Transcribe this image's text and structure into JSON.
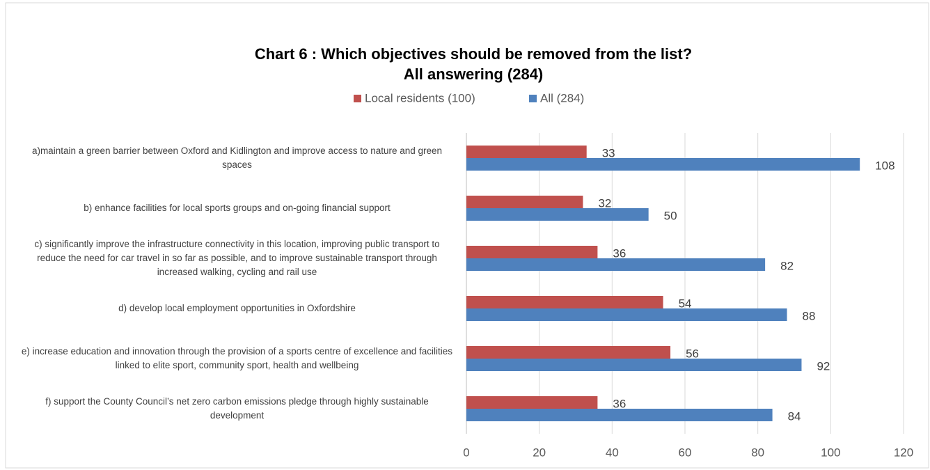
{
  "chart_data": {
    "type": "hbar",
    "title": "Chart 6 : Which objectives should be removed from the list?",
    "subtitle": "All answering (284)",
    "categories": [
      "a)maintain a green barrier between Oxford and Kidlington and improve access to nature and green spaces",
      "b)   enhance facilities for local sports groups and on-going financial support",
      "c)   significantly improve the infrastructure connectivity in this location, improving public transport to reduce the need for car travel in so far as possible, and to improve sustainable transport through increased walking, cycling and rail use",
      "d)   develop local employment opportunities in Oxfordshire",
      "e)   increase education and innovation through the provision of a sports centre of excellence and facilities linked to elite sport, community sport, health and wellbeing",
      "f)   support the County Council’s net zero carbon emissions pledge through highly sustainable development"
    ],
    "series": [
      {
        "name": "Local residents (100)",
        "color": "#c0504d",
        "values": [
          33,
          32,
          36,
          54,
          56,
          36
        ]
      },
      {
        "name": "All (284)",
        "color": "#4f81bd",
        "values": [
          108,
          50,
          82,
          88,
          92,
          84
        ]
      }
    ],
    "xlim": [
      0,
      120
    ],
    "xticks": [
      0,
      20,
      40,
      60,
      80,
      100,
      120
    ],
    "grid": true
  }
}
